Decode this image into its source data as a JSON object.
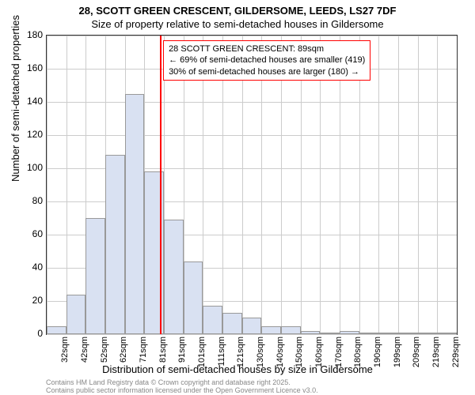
{
  "title": "28, SCOTT GREEN CRESCENT, GILDERSOME, LEEDS, LS27 7DF",
  "subtitle": "Size of property relative to semi-detached houses in Gildersome",
  "ylabel": "Number of semi-detached properties",
  "xlabel": "Distribution of semi-detached houses by size in Gildersome",
  "y_axis": {
    "min": 0,
    "max": 180,
    "ticks": [
      0,
      20,
      40,
      60,
      80,
      100,
      120,
      140,
      160,
      180
    ]
  },
  "x_axis": {
    "categories": [
      "32sqm",
      "42sqm",
      "52sqm",
      "62sqm",
      "71sqm",
      "81sqm",
      "91sqm",
      "101sqm",
      "111sqm",
      "121sqm",
      "130sqm",
      "140sqm",
      "150sqm",
      "160sqm",
      "170sqm",
      "180sqm",
      "190sqm",
      "199sqm",
      "209sqm",
      "219sqm",
      "229sqm"
    ]
  },
  "bars": {
    "values": [
      5,
      24,
      70,
      108,
      145,
      98,
      69,
      44,
      17,
      13,
      10,
      5,
      5,
      2,
      1,
      2,
      1,
      0,
      1,
      1,
      0
    ],
    "fill_color": "#d9e1f2",
    "border_color": "#999999"
  },
  "marker": {
    "position_category_index": 5.8,
    "color": "#ff0000"
  },
  "callout": {
    "lines": [
      "28 SCOTT GREEN CRESCENT: 89sqm",
      "← 69% of semi-detached houses are smaller (419)",
      "30% of semi-detached houses are larger (180) →"
    ],
    "border_color": "#ff0000"
  },
  "footer": {
    "line1": "Contains HM Land Registry data © Crown copyright and database right 2025.",
    "line2": "Contains public sector information licensed under the Open Government Licence v3.0."
  },
  "colors": {
    "background": "#ffffff",
    "grid": "#cccccc",
    "axis": "#333333"
  },
  "font": {
    "family": "Arial, sans-serif",
    "title_size": 13,
    "label_size": 13,
    "tick_size": 12,
    "callout_size": 11,
    "footer_size": 9
  }
}
